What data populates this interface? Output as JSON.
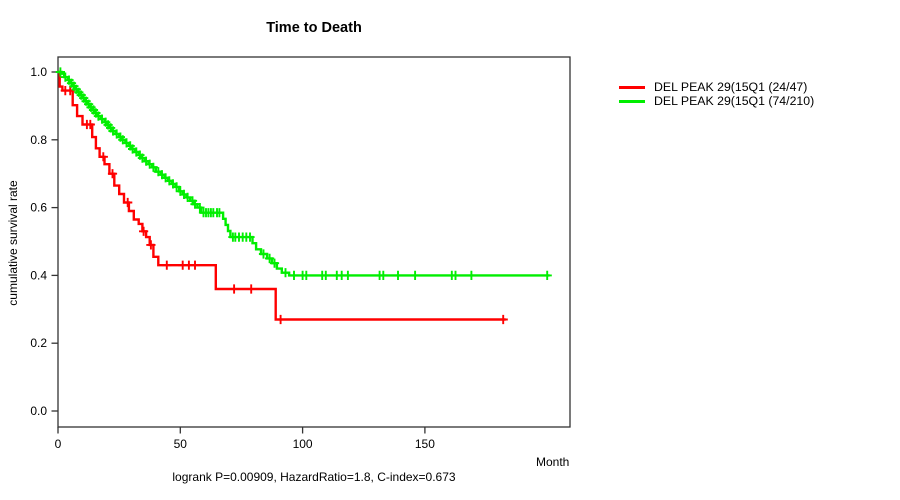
{
  "title": "Time to Death",
  "footer": "logrank P=0.00909, HazardRatio=1.8, C-index=0.673",
  "axes": {
    "x": {
      "label": "Month",
      "tick_values": [
        0,
        50,
        100,
        150
      ],
      "tick_labels": [
        "0",
        "50",
        "100",
        "150"
      ],
      "range": [
        0,
        209
      ]
    },
    "y": {
      "label": "cumulative survival rate",
      "tick_values": [
        0,
        0.2,
        0.4,
        0.6,
        0.8,
        1.0
      ],
      "tick_labels": [
        "0.0",
        "0.2",
        "0.4",
        "0.6",
        "0.8",
        "1.0"
      ],
      "range": [
        0,
        1.0
      ]
    }
  },
  "legend": [
    {
      "label": "DEL PEAK 29(15Q1 (24/47)",
      "color": "#ff0000"
    },
    {
      "label": "DEL PEAK 29(15Q1 (74/210)",
      "color": "#00ee00"
    }
  ],
  "colors": {
    "axis": "#333333",
    "red_series": "#ff0000",
    "green_series": "#00ee00"
  },
  "chart_data": {
    "type": "line",
    "subtype": "kaplan-meier-step",
    "title": "Time to Death",
    "xlabel": "Month",
    "ylabel": "cumulative survival rate",
    "xlim": [
      0,
      209
    ],
    "ylim": [
      0,
      1.0
    ],
    "annotation": "logrank P=0.00909, HazardRatio=1.8, C-index=0.673",
    "series": [
      {
        "name": "DEL PEAK 29(15Q1 (24/47)",
        "color": "#ff0000",
        "events_over_n": "24/47",
        "end_time": 183,
        "steps": [
          [
            0,
            1.0
          ],
          [
            0.7,
            0.957
          ],
          [
            1.8,
            0.945
          ],
          [
            6,
            0.902
          ],
          [
            7.8,
            0.87
          ],
          [
            10,
            0.845
          ],
          [
            14,
            0.808
          ],
          [
            15.5,
            0.775
          ],
          [
            17,
            0.75
          ],
          [
            19,
            0.728
          ],
          [
            21,
            0.7
          ],
          [
            23,
            0.665
          ],
          [
            25,
            0.64
          ],
          [
            27,
            0.615
          ],
          [
            29,
            0.59
          ],
          [
            31,
            0.565
          ],
          [
            33,
            0.552
          ],
          [
            34.5,
            0.53
          ],
          [
            36,
            0.513
          ],
          [
            37.5,
            0.49
          ],
          [
            39,
            0.455
          ],
          [
            41,
            0.43
          ],
          [
            64.5,
            0.36
          ],
          [
            89,
            0.27
          ]
        ],
        "censor_times": [
          3,
          5,
          11.8,
          13.2,
          18.5,
          22.3,
          28.5,
          35,
          38,
          44.5,
          51,
          53.5,
          56,
          72,
          79,
          91,
          182
        ]
      },
      {
        "name": "DEL PEAK 29(15Q1 (74/210)",
        "color": "#00ee00",
        "events_over_n": "74/210",
        "end_time": 201,
        "steps": [
          [
            0,
            1.0
          ],
          [
            1.5,
            0.995
          ],
          [
            2.5,
            0.985
          ],
          [
            4,
            0.976
          ],
          [
            5,
            0.967
          ],
          [
            6,
            0.958
          ],
          [
            7,
            0.949
          ],
          [
            8,
            0.94
          ],
          [
            9,
            0.932
          ],
          [
            10,
            0.923
          ],
          [
            11,
            0.914
          ],
          [
            12,
            0.905
          ],
          [
            13,
            0.896
          ],
          [
            14,
            0.888
          ],
          [
            15,
            0.879
          ],
          [
            16,
            0.87
          ],
          [
            17.5,
            0.861
          ],
          [
            19,
            0.852
          ],
          [
            20,
            0.844
          ],
          [
            21,
            0.835
          ],
          [
            22,
            0.826
          ],
          [
            23.5,
            0.817
          ],
          [
            25,
            0.808
          ],
          [
            26,
            0.8
          ],
          [
            27.5,
            0.791
          ],
          [
            29,
            0.782
          ],
          [
            30,
            0.773
          ],
          [
            31.5,
            0.764
          ],
          [
            33,
            0.755
          ],
          [
            34,
            0.746
          ],
          [
            35.5,
            0.737
          ],
          [
            37,
            0.728
          ],
          [
            38.5,
            0.719
          ],
          [
            40,
            0.706
          ],
          [
            42,
            0.697
          ],
          [
            43.5,
            0.688
          ],
          [
            45,
            0.679
          ],
          [
            46.5,
            0.67
          ],
          [
            48,
            0.661
          ],
          [
            49.5,
            0.648
          ],
          [
            51,
            0.639
          ],
          [
            52.5,
            0.63
          ],
          [
            54,
            0.62
          ],
          [
            55.5,
            0.61
          ],
          [
            57,
            0.6
          ],
          [
            58.5,
            0.585
          ],
          [
            67.5,
            0.567
          ],
          [
            68.5,
            0.549
          ],
          [
            69.5,
            0.531
          ],
          [
            70.5,
            0.513
          ],
          [
            79.5,
            0.495
          ],
          [
            81,
            0.477
          ],
          [
            83,
            0.463
          ],
          [
            85.5,
            0.45
          ],
          [
            87.5,
            0.436
          ],
          [
            89.5,
            0.42
          ],
          [
            91.5,
            0.408
          ],
          [
            94.5,
            0.4
          ]
        ],
        "censor_times": [
          1,
          3,
          4.5,
          5.5,
          6.5,
          7.5,
          8.5,
          9.5,
          10.5,
          11.5,
          12.5,
          13.5,
          14.5,
          15.5,
          16.5,
          18,
          19.5,
          20.5,
          21.5,
          22.5,
          24,
          25.5,
          26.5,
          28,
          29.5,
          30.5,
          32,
          33.5,
          34.5,
          36,
          37.5,
          39,
          41,
          42.5,
          44,
          45.5,
          47,
          48.5,
          50,
          51.5,
          53,
          55,
          56,
          58,
          59.5,
          60.5,
          61.5,
          62.5,
          63.5,
          65,
          66,
          71.5,
          72.5,
          74,
          75.5,
          77,
          78.5,
          84,
          86.5,
          88.5,
          93,
          96.5,
          100,
          101.5,
          108,
          109.5,
          114,
          116,
          118.5,
          131.5,
          133,
          139,
          146,
          161,
          162.5,
          169,
          200
        ]
      }
    ],
    "legend_position": "top-right-outside",
    "grid": false
  }
}
